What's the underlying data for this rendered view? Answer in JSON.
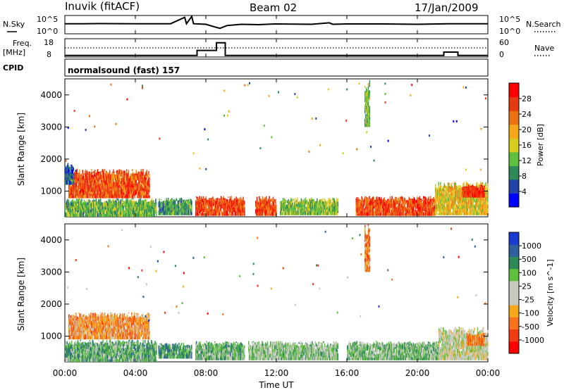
{
  "header": {
    "station": "Inuvik (fitACF)",
    "beam": "Beam 02",
    "date": "17/Jan/2009"
  },
  "strip_labels": {
    "nsky": "N.Sky",
    "nsky_ticks": [
      "10^5",
      "10^0"
    ],
    "nsearch": "N.Search",
    "nsearch_ticks": [
      "10^5",
      "10^0"
    ],
    "freq": "Freq.",
    "freq_unit": "[MHz]",
    "freq_ticks": [
      "18",
      "8"
    ],
    "nave": "Nave",
    "nave_ticks": [
      "60",
      "0"
    ],
    "cpid": "CPID",
    "cpid_value": "normalsound (fast) 157"
  },
  "colors": {
    "power_scale": [
      "#0000ff",
      "#2244aa",
      "#2e8b57",
      "#5fbf3f",
      "#d8cc20",
      "#f7a81a",
      "#f07014",
      "#e83a10",
      "#ff0000"
    ],
    "velocity_scale": [
      "#ff0000",
      "#f03c10",
      "#f7721a",
      "#f7a81a",
      "#c8c8c0",
      "#c8c8c0",
      "#5fbf3f",
      "#2e8b57",
      "#2f5f9f",
      "#1a3bd0"
    ],
    "frame": "#000000"
  },
  "chart_data": [
    {
      "type": "line",
      "title": "",
      "xlabel": "",
      "ylabel": "N.Sky",
      "x_range_hours": [
        0,
        24
      ],
      "series": [
        {
          "name": "N.Sky",
          "x": [
            0,
            1,
            2,
            4,
            6,
            6.8,
            6.9,
            7.2,
            7.3,
            8,
            8.6,
            8.8,
            9.2,
            10,
            11,
            12,
            14,
            15,
            15.2,
            16,
            18,
            20,
            22,
            24
          ],
          "values": [
            0.55,
            0.55,
            0.56,
            0.55,
            0.55,
            0.9,
            0.55,
            0.95,
            0.55,
            0.52,
            0.35,
            0.3,
            0.45,
            0.52,
            0.5,
            0.54,
            0.52,
            0.6,
            0.52,
            0.54,
            0.54,
            0.52,
            0.55,
            0.55
          ]
        }
      ]
    },
    {
      "type": "line",
      "title": "",
      "xlabel": "",
      "ylabel": "Freq. [MHz]",
      "ylim": [
        8,
        18
      ],
      "x_range_hours": [
        0,
        24
      ],
      "series": [
        {
          "name": "Freq.",
          "x": [
            0,
            7.5,
            7.5,
            8.6,
            8.6,
            9.1,
            9.1,
            21.5,
            21.5,
            22.3,
            22.3,
            24
          ],
          "values": [
            8.5,
            8.5,
            11.5,
            11.5,
            16,
            16,
            8.5,
            8.5,
            10.5,
            10.5,
            8.5,
            8.5
          ]
        },
        {
          "name": "Nave",
          "x": [
            0,
            24
          ],
          "values": [
            13,
            13
          ]
        }
      ]
    },
    {
      "type": "heatmap",
      "title": "",
      "xlabel": "",
      "ylabel": "Slant Range [km]",
      "ylim": [
        200,
        4500
      ],
      "xlim": [
        0,
        24
      ],
      "x_tick_labels": [
        "00:00",
        "04:00",
        "08:00",
        "12:00",
        "16:00",
        "20:00",
        "00:00"
      ],
      "y_tick_labels": [
        "1000",
        "2000",
        "3000",
        "4000"
      ],
      "colorbar_label": "Power [dB]",
      "colorbar_ticks": [
        "4",
        "8",
        "12",
        "16",
        "20",
        "24",
        "28"
      ],
      "colorbar_range": [
        0,
        30
      ],
      "regions": [
        {
          "t0": 0.2,
          "t1": 4.8,
          "r0": 780,
          "r1": 1700,
          "level": 0.82
        },
        {
          "t0": 0.0,
          "t1": 5.2,
          "r0": 200,
          "r1": 780,
          "level": 0.35
        },
        {
          "t0": 5.3,
          "t1": 7.2,
          "r0": 250,
          "r1": 800,
          "level": 0.3
        },
        {
          "t0": 7.4,
          "t1": 10.2,
          "r0": 230,
          "r1": 850,
          "level": 0.85
        },
        {
          "t0": 10.8,
          "t1": 12.0,
          "r0": 230,
          "r1": 850,
          "level": 0.85
        },
        {
          "t0": 12.2,
          "t1": 15.5,
          "r0": 250,
          "r1": 800,
          "level": 0.4
        },
        {
          "t0": 16.5,
          "t1": 21.0,
          "r0": 230,
          "r1": 850,
          "level": 0.85
        },
        {
          "t0": 21.0,
          "t1": 24.0,
          "r0": 250,
          "r1": 1300,
          "level": 0.55
        },
        {
          "t0": 22.5,
          "t1": 23.8,
          "r0": 800,
          "r1": 1200,
          "level": 0.9
        },
        {
          "t0": 17.0,
          "t1": 17.3,
          "r0": 3000,
          "r1": 4500,
          "level": 0.4
        },
        {
          "t0": 0.0,
          "t1": 0.5,
          "r0": 1200,
          "r1": 1900,
          "level": 0.15
        }
      ]
    },
    {
      "type": "heatmap",
      "title": "",
      "xlabel": "Time UT",
      "ylabel": "Slant Range [km]",
      "ylim": [
        200,
        4500
      ],
      "xlim": [
        0,
        24
      ],
      "x_tick_labels": [
        "00:00",
        "04:00",
        "08:00",
        "12:00",
        "16:00",
        "20:00",
        "00:00"
      ],
      "y_tick_labels": [
        "1000",
        "2000",
        "3000",
        "4000"
      ],
      "colorbar_label": "Velocity [m s^-1]",
      "colorbar_ticks": [
        "-1000",
        "-500",
        "-100",
        "-25",
        "25",
        "100",
        "500",
        "1000"
      ],
      "regions": [
        {
          "t0": 0.2,
          "t1": 4.8,
          "r0": 900,
          "r1": 1750,
          "level": 0.3
        },
        {
          "t0": 0.0,
          "t1": 5.2,
          "r0": 200,
          "r1": 900,
          "level": 0.7
        },
        {
          "t0": 5.3,
          "t1": 7.2,
          "r0": 300,
          "r1": 800,
          "level": 0.75
        },
        {
          "t0": 7.4,
          "t1": 10.2,
          "r0": 250,
          "r1": 850,
          "level": 0.68
        },
        {
          "t0": 10.4,
          "t1": 15.5,
          "r0": 250,
          "r1": 850,
          "level": 0.62
        },
        {
          "t0": 16.0,
          "t1": 21.2,
          "r0": 250,
          "r1": 850,
          "level": 0.65
        },
        {
          "t0": 21.2,
          "t1": 24.0,
          "r0": 250,
          "r1": 1300,
          "level": 0.5
        },
        {
          "t0": 22.8,
          "t1": 23.8,
          "r0": 700,
          "r1": 1100,
          "level": 0.25
        },
        {
          "t0": 17.0,
          "t1": 17.3,
          "r0": 3000,
          "r1": 4500,
          "level": 0.25
        }
      ]
    }
  ]
}
